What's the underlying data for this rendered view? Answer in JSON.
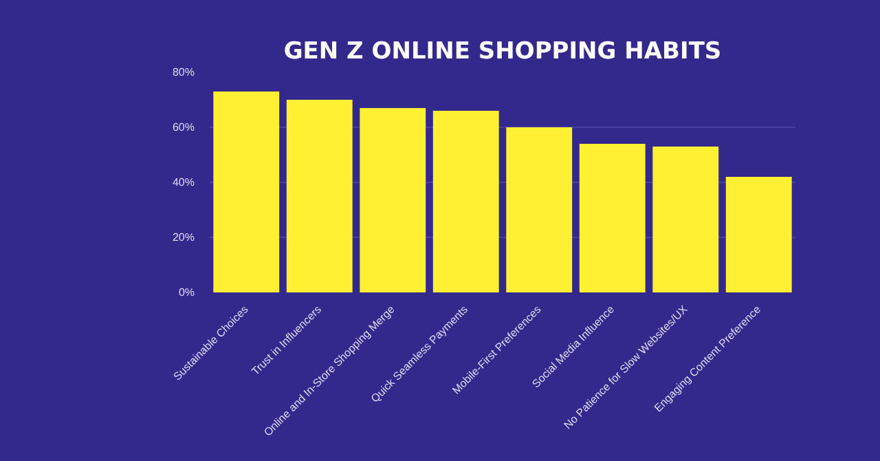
{
  "chart_data": {
    "type": "bar",
    "title": "GEN Z ONLINE SHOPPING HABITS",
    "categories": [
      "Sustainable Choices",
      "Trust in Influencers",
      "Online and In-Store Shopping Merge",
      "Quick Seamless Payments",
      "Mobile-First Preferences",
      "Social Media Influence",
      "No Patience for Slow Websites/UX",
      "Engaging Content Preference"
    ],
    "values": [
      73,
      70,
      67,
      66,
      60,
      54,
      53,
      42
    ],
    "color": "#fff033",
    "ylim": [
      0,
      80
    ],
    "yticks": [
      {
        "value": 0,
        "label": "0%"
      },
      {
        "value": 20,
        "label": "20%"
      },
      {
        "value": 40,
        "label": "40%"
      },
      {
        "value": 60,
        "label": "60%"
      },
      {
        "value": 80,
        "label": "80%"
      }
    ],
    "grid": "y"
  }
}
